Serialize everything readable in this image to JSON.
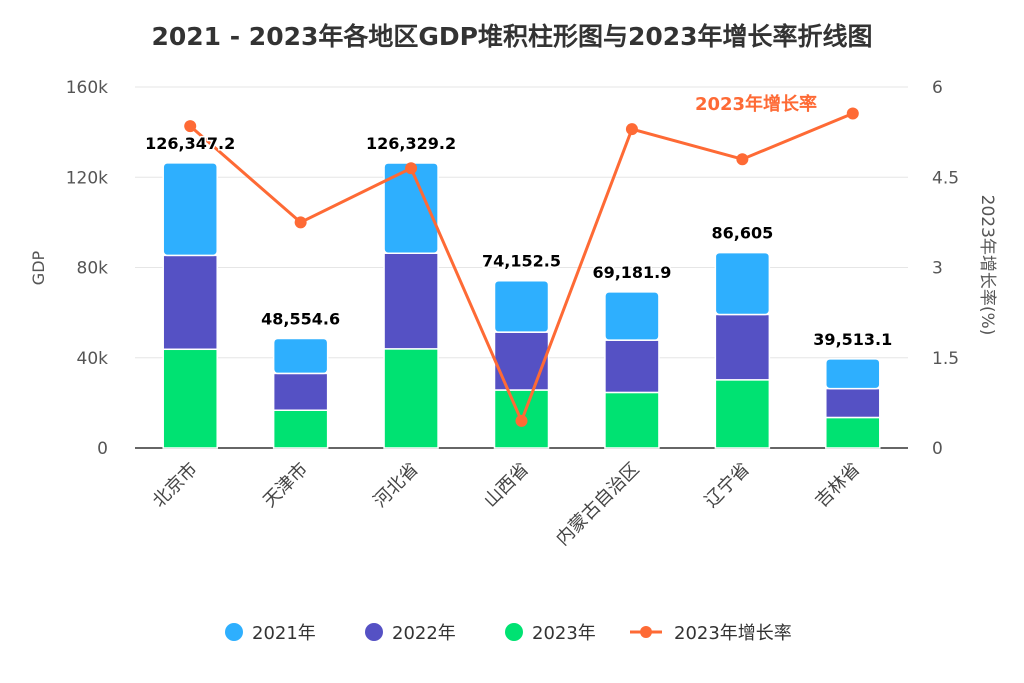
{
  "chart_data": {
    "type": "bar+line",
    "title": "2021 - 2023年各地区GDP堆积柱形图与2023年增长率折线图",
    "categories": [
      "北京市",
      "天津市",
      "河北省",
      "山西省",
      "内蒙古自治区",
      "辽宁省",
      "吉林省"
    ],
    "series": [
      {
        "name": "2021年",
        "type": "bar",
        "color": "#2eaffe",
        "values": [
          40975.6,
          15506,
          40014.7,
          22811.7,
          21396.3,
          27420.5,
          13182
        ]
      },
      {
        "name": "2022年",
        "type": "bar",
        "color": "#5551c4",
        "values": [
          41610.9,
          16311.3,
          42370.4,
          25642.6,
          23158.6,
          28975.1,
          12800
        ]
      },
      {
        "name": "2023年",
        "type": "bar",
        "color": "#00e272",
        "values": [
          43760.7,
          16737.3,
          43944.1,
          25698.2,
          24627,
          30209.4,
          13531.2
        ]
      },
      {
        "name": "2023年增长率",
        "type": "line",
        "axis": "right",
        "color": "#fe6a35",
        "values": [
          5.35,
          3.75,
          4.65,
          0.45,
          5.3,
          4.8,
          5.56
        ]
      }
    ],
    "totals": [
      "126,347.2",
      "48,554.6",
      "126,329.2",
      "74,152.5",
      "69,181.9",
      "86,605",
      "39,513.1"
    ],
    "line_label": "2023年增长率",
    "ylabel": "GDP",
    "ylim": [
      0,
      160000
    ],
    "yticks": [
      "0",
      "40k",
      "80k",
      "120k",
      "160k"
    ],
    "y2label": "2023年增长率(%)",
    "y2lim": [
      0,
      6
    ],
    "y2ticks": [
      "0",
      "1.5",
      "3",
      "4.5",
      "6"
    ],
    "grid": true,
    "legend": "bottom"
  }
}
